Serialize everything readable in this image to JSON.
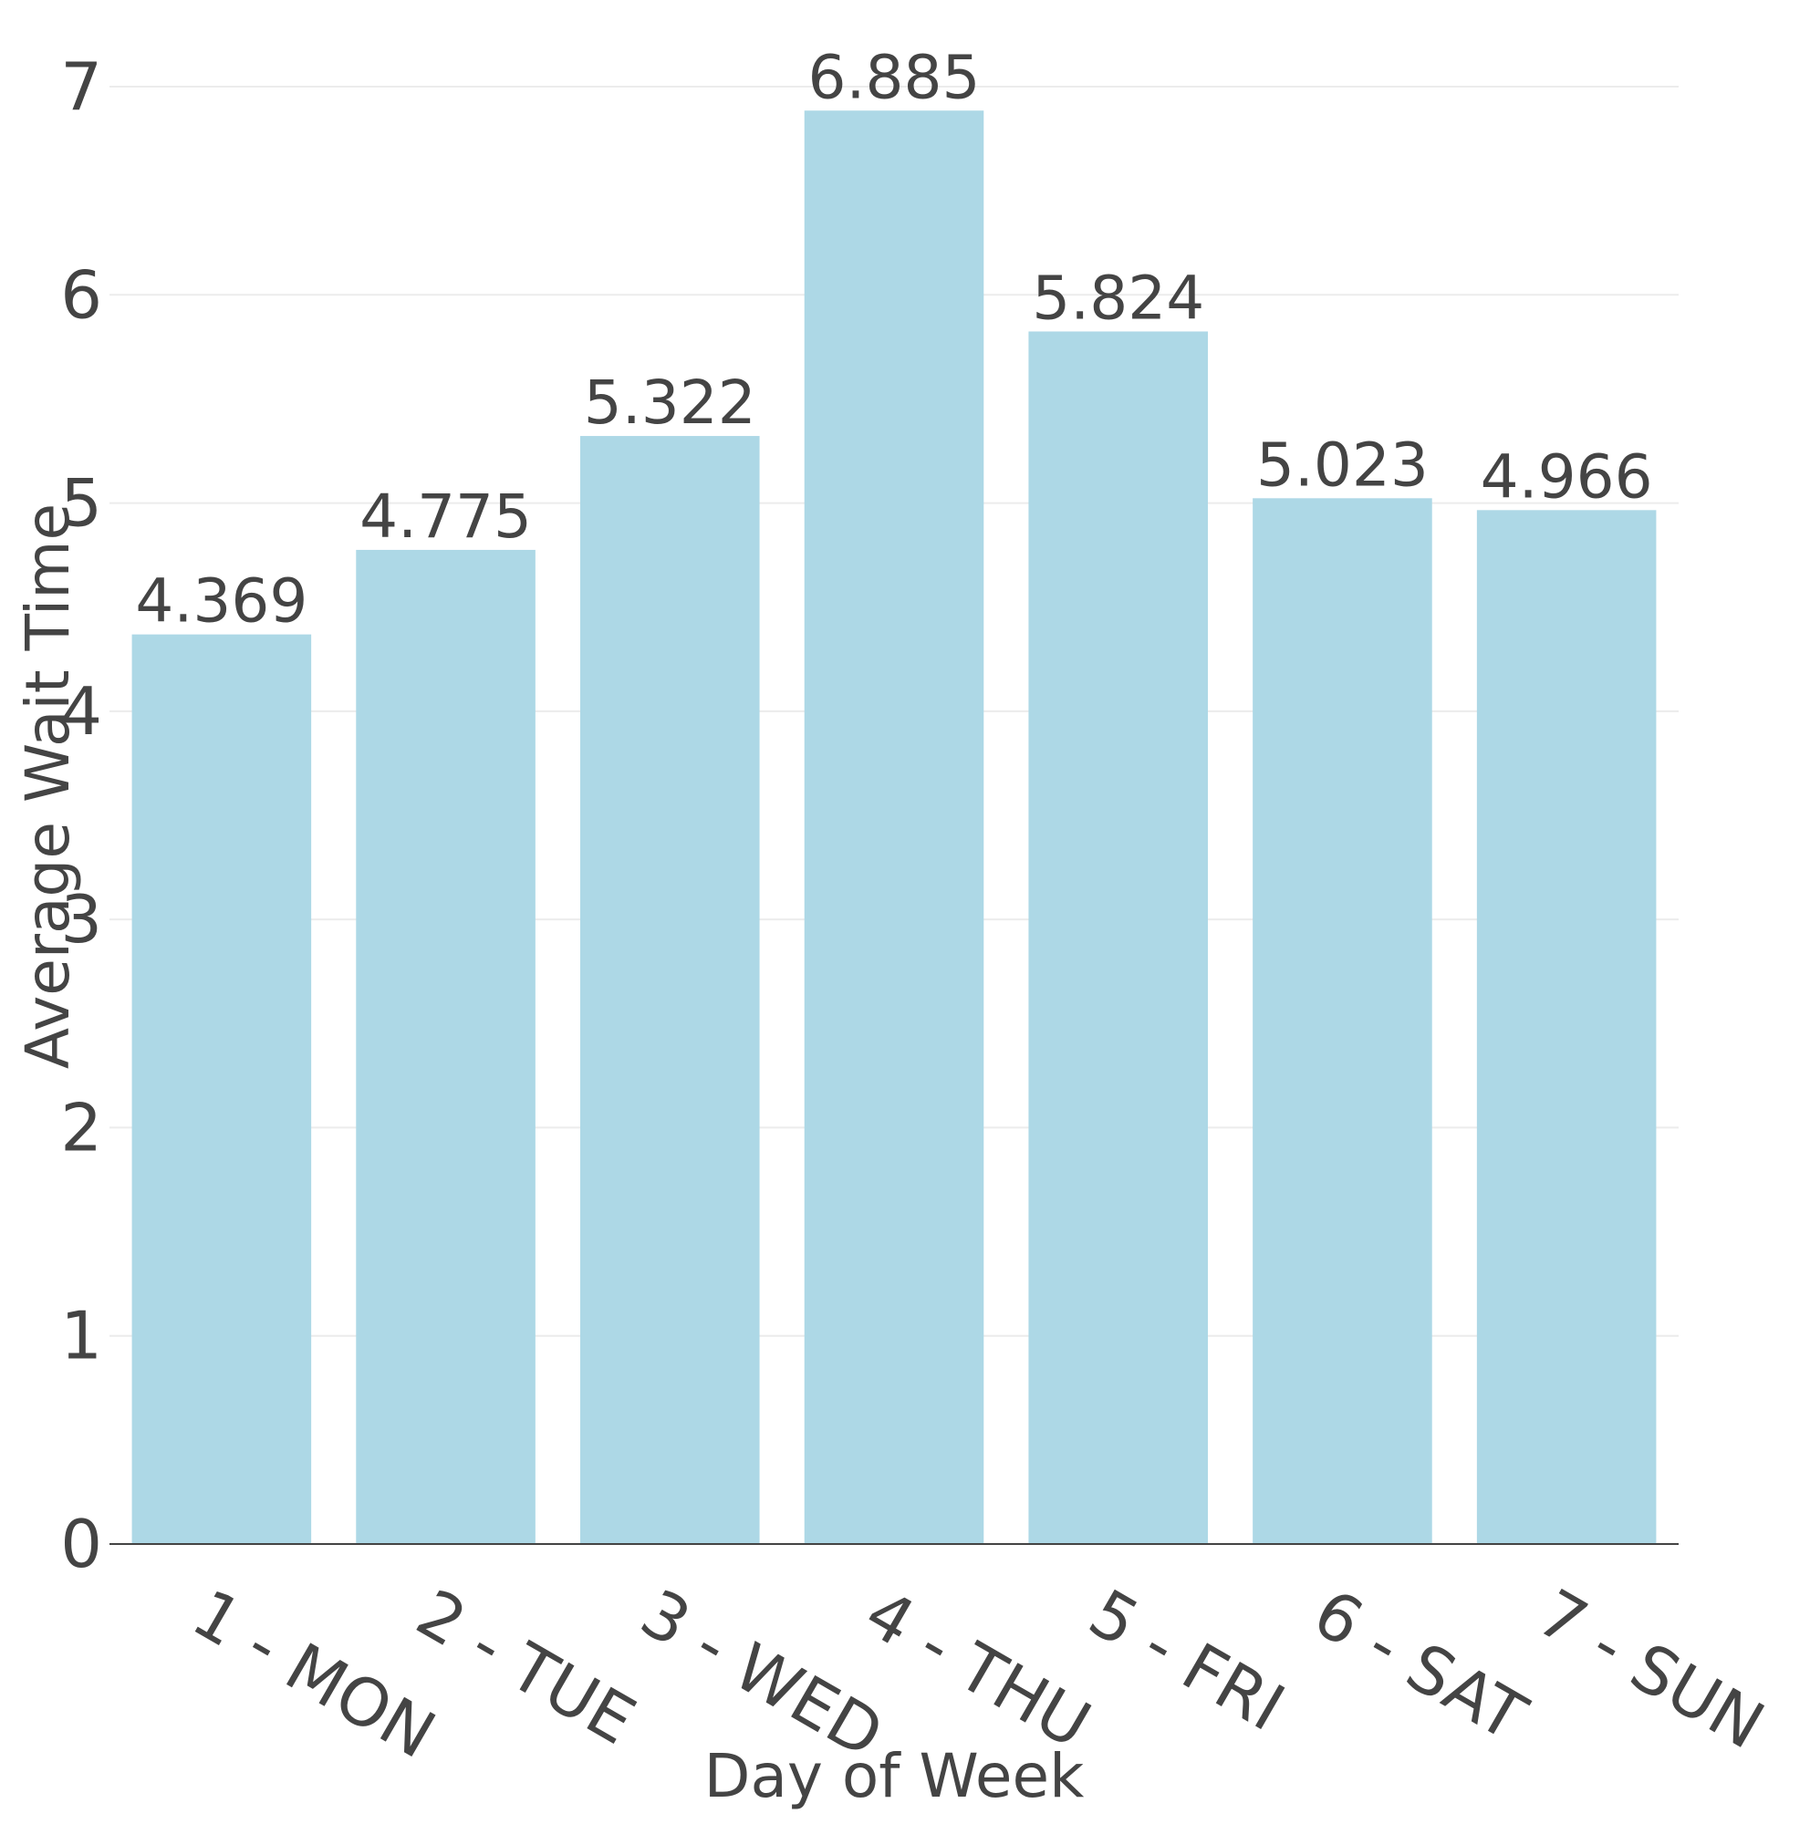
{
  "chart_data": {
    "type": "bar",
    "categories": [
      "1 - MON",
      "2 - TUE",
      "3 - WED",
      "4 - THU",
      "5 - FRI",
      "6 - SAT",
      "7 - SUN"
    ],
    "values": [
      4.369,
      4.775,
      5.322,
      6.885,
      5.824,
      5.023,
      4.966
    ],
    "data_labels": [
      "4.369",
      "4.775",
      "5.322",
      "6.885",
      "5.824",
      "5.023",
      "4.966"
    ],
    "xlabel": "Day of Week",
    "ylabel": "Average Wait Time",
    "ylim": [
      0,
      7
    ],
    "yticks": [
      0,
      1,
      2,
      3,
      4,
      5,
      6,
      7
    ],
    "grid": true,
    "bar_color": "#add8e6",
    "text_color": "#444444",
    "grid_color": "#ececec"
  }
}
